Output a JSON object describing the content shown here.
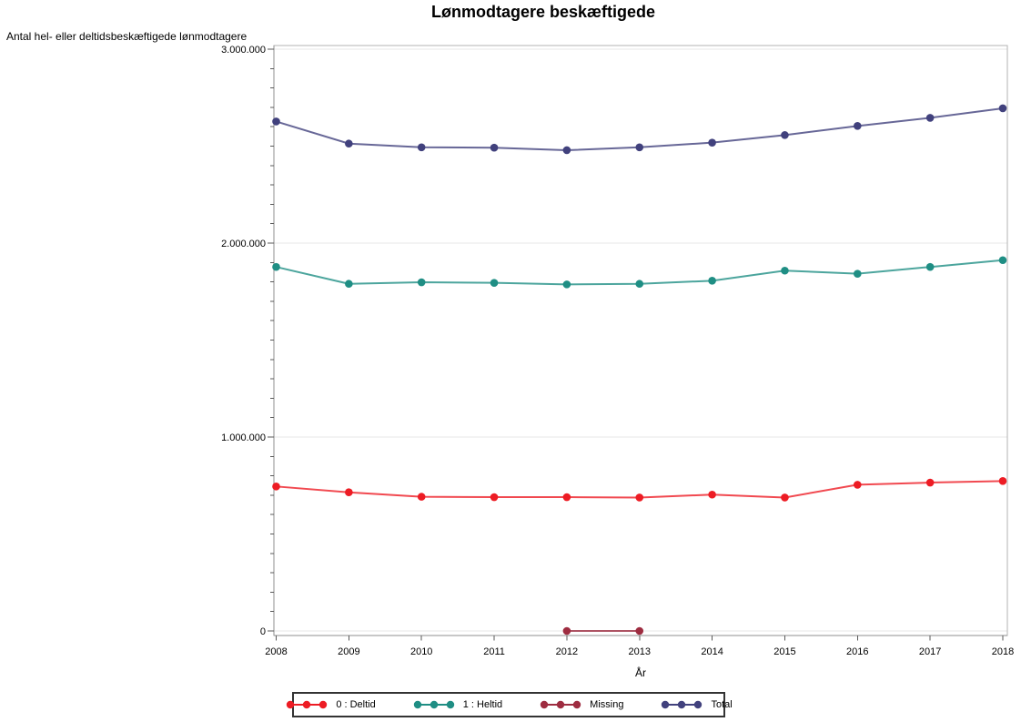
{
  "page": {
    "background": "#ffffff"
  },
  "chart_data": {
    "type": "line",
    "title": "Lønmodtagere beskæftigede",
    "xlabel": "År",
    "ylabel": "Antal hel- eller deltidsbeskæftigede lønmodtagere",
    "x": [
      2008,
      2009,
      2010,
      2011,
      2012,
      2013,
      2014,
      2015,
      2016,
      2017,
      2018
    ],
    "ylim": [
      0,
      3000000
    ],
    "y_axis": {
      "tick_values": [
        0,
        1000000,
        2000000,
        3000000
      ],
      "tick_labels": [
        "0",
        "1.000.000",
        "2.000.000",
        "3.000.000"
      ],
      "minor_tick_step": 100000
    },
    "grid": "horizontal-major",
    "legend_position": "bottom-center",
    "series": [
      {
        "name": "0 : Deltid",
        "color": "#ed1c24",
        "values": [
          745000,
          715000,
          692000,
          690000,
          690000,
          688000,
          703000,
          688000,
          754000,
          765000,
          773000
        ]
      },
      {
        "name": "1 : Heltid",
        "color": "#1f8e84",
        "values": [
          1877000,
          1790000,
          1798000,
          1795000,
          1787000,
          1790000,
          1806000,
          1858000,
          1842000,
          1877000,
          1912000
        ]
      },
      {
        "name": "Missing",
        "color": "#9e2c40",
        "values": [
          null,
          null,
          null,
          null,
          0,
          0,
          null,
          null,
          null,
          null,
          null
        ]
      },
      {
        "name": "Total",
        "color": "#41417d",
        "values": [
          2627000,
          2513000,
          2494000,
          2492000,
          2479000,
          2494000,
          2518000,
          2557000,
          2604000,
          2646000,
          2695000
        ]
      }
    ]
  }
}
